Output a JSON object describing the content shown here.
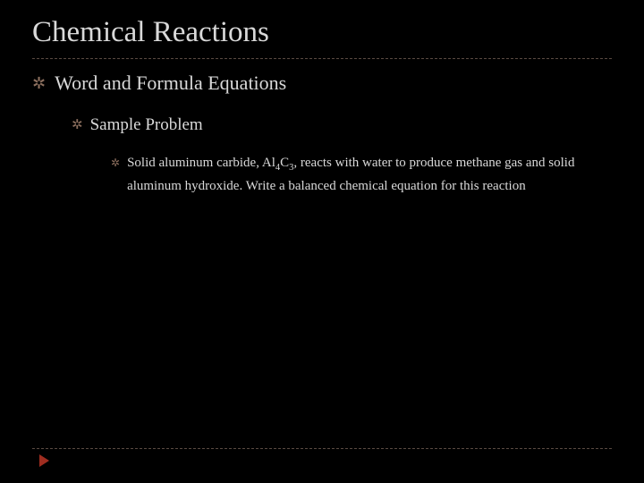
{
  "slide": {
    "background_color": "#000000",
    "text_color": "#d9d9d9",
    "bullet_marker_color": "#8c6f5e",
    "divider_color": "#5a4a42",
    "arrow_color": "#9f2d20",
    "title": "Chemical Reactions",
    "title_fontsize": 33,
    "bullets": {
      "level1": {
        "text": "Word and Formula Equations",
        "fontsize": 22
      },
      "level2": {
        "text": "Sample Problem",
        "fontsize": 19
      },
      "level3": {
        "prefix": "Solid aluminum carbide, Al",
        "sub1": "4",
        "mid": "C",
        "sub2": "3",
        "suffix": ", reacts with water to produce methane gas and solid aluminum hydroxide. Write a balanced chemical equation for this reaction",
        "fontsize": 15
      }
    },
    "marker_glyph": "✲"
  }
}
